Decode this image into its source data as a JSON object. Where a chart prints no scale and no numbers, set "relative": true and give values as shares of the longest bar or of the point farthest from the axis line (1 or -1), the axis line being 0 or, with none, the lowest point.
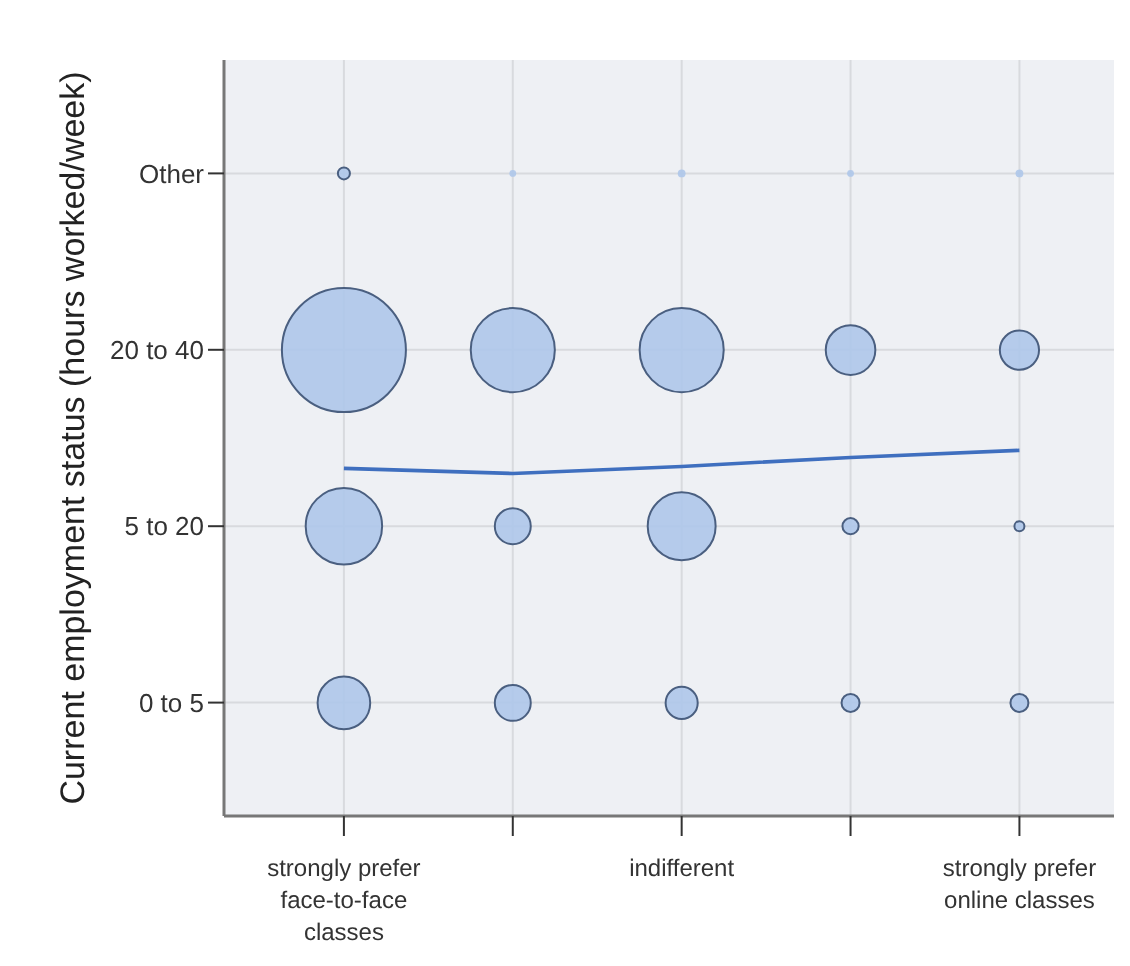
{
  "chart_data": {
    "type": "bubble",
    "ylabel": "Current employment status (hours worked/week)",
    "categories": [
      "strongly prefer face-to-face classes",
      null,
      "indifferent",
      null,
      "strongly prefer online classes"
    ],
    "y_categories": [
      "Other",
      "20 to 40",
      "5 to 20",
      "0 to 5"
    ],
    "grid": true,
    "relative": true,
    "series": [
      {
        "color": "#aec6ea",
        "values": [
          1,
          1,
          1,
          1,
          1
        ],
        "sizes": [
          0.0094,
          0.003,
          0.004,
          0.003,
          0.004
        ]
      },
      {
        "color": "#aec6ea",
        "values": [
          0.725,
          0.725,
          0.725,
          0.725,
          0.725
        ],
        "sizes": [
          1,
          0.46,
          0.46,
          0.16,
          0.1
        ]
      },
      {
        "color": "#aec6ea",
        "values": [
          0.451,
          0.451,
          0.451,
          0.451,
          0.451
        ],
        "sizes": [
          0.38,
          0.084,
          0.3,
          0.017,
          0.0065
        ]
      },
      {
        "color": "#aec6ea",
        "values": [
          0.176,
          0.176,
          0.176,
          0.176,
          0.176
        ],
        "sizes": [
          0.18,
          0.084,
          0.067,
          0.021,
          0.021
        ]
      },
      {
        "type": "line",
        "color": "#3f6fbf",
        "values": [
          0.541,
          0.533,
          0.544,
          0.558,
          0.569
        ]
      }
    ]
  }
}
